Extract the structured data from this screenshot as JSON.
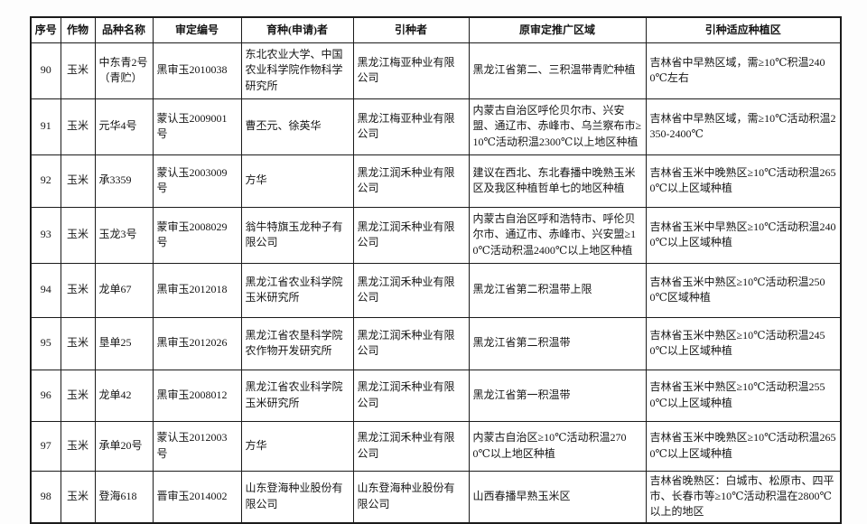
{
  "document": {
    "kind": "scanned-approval-table",
    "crop_repeated": "玉米",
    "table": {
      "columns": [
        "序号",
        "作物",
        "品种名称",
        "审定编号",
        "育种(申请)者",
        "引种者",
        "原审定推广区域",
        "引种适应种植区"
      ],
      "rows": [
        {
          "seq": "90",
          "crop": "玉米",
          "variety": "中东青2号（青贮）",
          "approval_no": "黑审玉2010038",
          "breeder": "东北农业大学、中国农业科学院作物科学研究所",
          "introducer": "黑龙江梅亚种业有限公司",
          "original_region": "黑龙江省第二、三积温带青贮种植",
          "adapted_region": "吉林省中早熟区域，需≥10℃积温2400℃左右"
        },
        {
          "seq": "91",
          "crop": "玉米",
          "variety": "元华4号",
          "approval_no": "蒙认玉2009001号",
          "breeder": "曹丕元、徐英华",
          "introducer": "黑龙江梅亚种业有限公司",
          "original_region": "内蒙古自治区呼伦贝尔市、兴安盟、通辽市、赤峰市、乌兰察布市≥10℃活动积温2300℃以上地区种植",
          "adapted_region": "吉林省中早熟区域，需≥10℃活动积温2350-2400℃"
        },
        {
          "seq": "92",
          "crop": "玉米",
          "variety": "承3359",
          "approval_no": "蒙认玉2003009号",
          "breeder": "方华",
          "introducer": "黑龙江润禾种业有限公司",
          "original_region": "建议在西北、东北春播中晚熟玉米区及我区种植哲单七的地区种植",
          "adapted_region": "吉林省玉米中晚熟区≥10℃活动积温2650℃以上区域种植"
        },
        {
          "seq": "93",
          "crop": "玉米",
          "variety": "玉龙3号",
          "approval_no": "蒙审玉2008029号",
          "breeder": "翁牛特旗玉龙种子有限公司",
          "introducer": "黑龙江润禾种业有限公司",
          "original_region": "内蒙古自治区呼和浩特市、呼伦贝尔市、通辽市、赤峰市、兴安盟≥10℃活动积温2400℃以上地区种植",
          "adapted_region": "吉林省玉米中早熟区≥10℃活动积温2400℃以上区域种植"
        },
        {
          "seq": "94",
          "crop": "玉米",
          "variety": "龙单67",
          "approval_no": "黑审玉2012018",
          "breeder": "黑龙江省农业科学院玉米研究所",
          "introducer": "黑龙江润禾种业有限公司",
          "original_region": "黑龙江省第二积温带上限",
          "adapted_region": "吉林省玉米中熟区≥10℃活动积温2500℃区域种植"
        },
        {
          "seq": "95",
          "crop": "玉米",
          "variety": "垦单25",
          "approval_no": "黑审玉2012026",
          "breeder": "黑龙江省农垦科学院农作物开发研究所",
          "introducer": "黑龙江润禾种业有限公司",
          "original_region": "黑龙江省第二积温带",
          "adapted_region": "吉林省玉米中熟区≥10℃活动积温2450℃以上区域种植"
        },
        {
          "seq": "96",
          "crop": "玉米",
          "variety": "龙单42",
          "approval_no": "黑审玉2008012",
          "breeder": "黑龙江省农业科学院玉米研究所",
          "introducer": "黑龙江润禾种业有限公司",
          "original_region": "黑龙江省第一积温带",
          "adapted_region": "吉林省玉米中熟区≥10℃活动积温2550℃以上区域种植"
        },
        {
          "seq": "97",
          "crop": "玉米",
          "variety": "承单20号",
          "approval_no": "蒙认玉2012003号",
          "breeder": "方华",
          "introducer": "黑龙江润禾种业有限公司",
          "original_region": "内蒙古自治区≥10℃活动积温2700℃以上地区种植",
          "adapted_region": "吉林省玉米中晚熟区≥10℃活动积温2650℃以上区域种植"
        },
        {
          "seq": "98",
          "crop": "玉米",
          "variety": "登海618",
          "approval_no": "晋审玉2014002",
          "breeder": "山东登海种业股份有限公司",
          "introducer": "山东登海种业股份有限公司",
          "original_region": "山西春播早熟玉米区",
          "adapted_region": "吉林省晚熟区：白城市、松原市、四平市、长春市等≥10℃活动积温在2800℃以上的地区"
        }
      ]
    }
  }
}
